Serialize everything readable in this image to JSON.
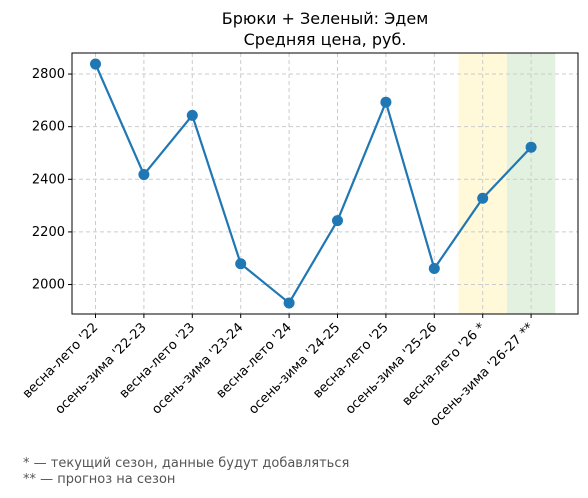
{
  "chart_data": {
    "type": "line",
    "title": "Брюки + Зеленый: Эдем",
    "subtitle": "Средняя цена, руб.",
    "categories": [
      "весна-лето '22",
      "осень-зима '22-23",
      "весна-лето '23",
      "осень-зима '23-24",
      "весна-лето '24",
      "осень-зима '24-25",
      "весна-лето '25",
      "осень-зима '25-26",
      "весна-лето '26 *",
      "осень-зима '26-27 **"
    ],
    "series": [
      {
        "values": [
          2838,
          2418,
          2643,
          2079,
          1930,
          2243,
          2693,
          2061,
          2328,
          2522
        ]
      }
    ],
    "ylim": [
      1888,
      2880
    ],
    "yticks": [
      2000,
      2200,
      2400,
      2600,
      2800
    ],
    "grid": true,
    "highlights": [
      {
        "category_index": 8,
        "color": "#fff8d9"
      },
      {
        "category_index": 9,
        "color": "#e3f2e0"
      }
    ],
    "line_color": "#1f77b4"
  },
  "notes": [
    "* — текущий сезон, данные будут добавляться",
    "** — прогноз на сезон"
  ]
}
